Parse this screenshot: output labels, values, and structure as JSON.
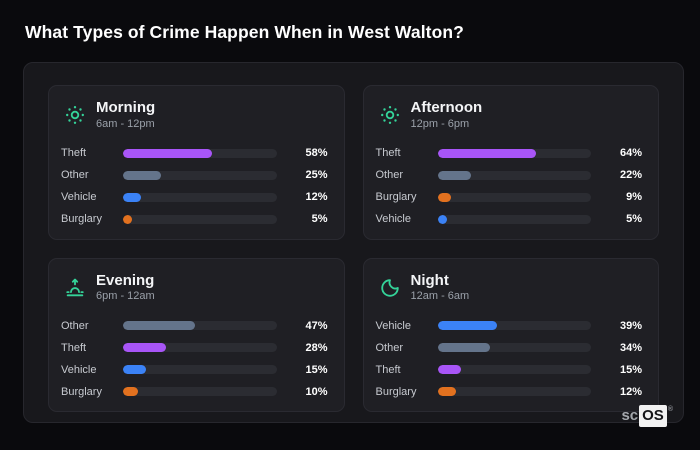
{
  "title": "What Types of Crime Happen When in West Walton?",
  "brand": {
    "prefix": "sc",
    "boxed": "OS",
    "reg": "®"
  },
  "colors": {
    "theft": "#a855f7",
    "other": "#64748b",
    "vehicle": "#3b82f6",
    "burglary": "#e2711f",
    "icon_accent": "#34d399",
    "bar_track": "#2b2c32",
    "panel_bg": "#1f1f24",
    "container_bg": "#18181c",
    "page_bg": "#0a0a0d"
  },
  "panels": [
    {
      "title": "Morning",
      "time": "6am - 12pm",
      "icon": "sun-icon",
      "rows": [
        {
          "label": "Theft",
          "value": 58,
          "pct": "58%",
          "color_key": "theft"
        },
        {
          "label": "Other",
          "value": 25,
          "pct": "25%",
          "color_key": "other"
        },
        {
          "label": "Vehicle",
          "value": 12,
          "pct": "12%",
          "color_key": "vehicle"
        },
        {
          "label": "Burglary",
          "value": 5,
          "pct": "5%",
          "color_key": "burglary"
        }
      ]
    },
    {
      "title": "Afternoon",
      "time": "12pm - 6pm",
      "icon": "sun-icon",
      "rows": [
        {
          "label": "Theft",
          "value": 64,
          "pct": "64%",
          "color_key": "theft"
        },
        {
          "label": "Other",
          "value": 22,
          "pct": "22%",
          "color_key": "other"
        },
        {
          "label": "Burglary",
          "value": 9,
          "pct": "9%",
          "color_key": "burglary"
        },
        {
          "label": "Vehicle",
          "value": 5,
          "pct": "5%",
          "color_key": "vehicle"
        }
      ]
    },
    {
      "title": "Evening",
      "time": "6pm - 12am",
      "icon": "sunrise-icon",
      "rows": [
        {
          "label": "Other",
          "value": 47,
          "pct": "47%",
          "color_key": "other"
        },
        {
          "label": "Theft",
          "value": 28,
          "pct": "28%",
          "color_key": "theft"
        },
        {
          "label": "Vehicle",
          "value": 15,
          "pct": "15%",
          "color_key": "vehicle"
        },
        {
          "label": "Burglary",
          "value": 10,
          "pct": "10%",
          "color_key": "burglary"
        }
      ]
    },
    {
      "title": "Night",
      "time": "12am - 6am",
      "icon": "moon-icon",
      "rows": [
        {
          "label": "Vehicle",
          "value": 39,
          "pct": "39%",
          "color_key": "vehicle"
        },
        {
          "label": "Other",
          "value": 34,
          "pct": "34%",
          "color_key": "other"
        },
        {
          "label": "Theft",
          "value": 15,
          "pct": "15%",
          "color_key": "theft"
        },
        {
          "label": "Burglary",
          "value": 12,
          "pct": "12%",
          "color_key": "burglary"
        }
      ]
    }
  ],
  "chart_data": [
    {
      "type": "bar",
      "orientation": "horizontal",
      "title": "Morning",
      "subtitle": "6am - 12pm",
      "categories": [
        "Theft",
        "Other",
        "Vehicle",
        "Burglary"
      ],
      "values": [
        58,
        25,
        12,
        5
      ],
      "unit": "%",
      "xlim": [
        0,
        100
      ],
      "grid": false,
      "bar_colors": [
        "#a855f7",
        "#64748b",
        "#3b82f6",
        "#e2711f"
      ]
    },
    {
      "type": "bar",
      "orientation": "horizontal",
      "title": "Afternoon",
      "subtitle": "12pm - 6pm",
      "categories": [
        "Theft",
        "Other",
        "Burglary",
        "Vehicle"
      ],
      "values": [
        64,
        22,
        9,
        5
      ],
      "unit": "%",
      "xlim": [
        0,
        100
      ],
      "grid": false,
      "bar_colors": [
        "#a855f7",
        "#64748b",
        "#e2711f",
        "#3b82f6"
      ]
    },
    {
      "type": "bar",
      "orientation": "horizontal",
      "title": "Evening",
      "subtitle": "6pm - 12am",
      "categories": [
        "Other",
        "Theft",
        "Vehicle",
        "Burglary"
      ],
      "values": [
        47,
        28,
        15,
        10
      ],
      "unit": "%",
      "xlim": [
        0,
        100
      ],
      "grid": false,
      "bar_colors": [
        "#64748b",
        "#a855f7",
        "#3b82f6",
        "#e2711f"
      ]
    },
    {
      "type": "bar",
      "orientation": "horizontal",
      "title": "Night",
      "subtitle": "12am - 6am",
      "categories": [
        "Vehicle",
        "Other",
        "Theft",
        "Burglary"
      ],
      "values": [
        39,
        34,
        15,
        12
      ],
      "unit": "%",
      "xlim": [
        0,
        100
      ],
      "grid": false,
      "bar_colors": [
        "#3b82f6",
        "#64748b",
        "#a855f7",
        "#e2711f"
      ]
    }
  ]
}
